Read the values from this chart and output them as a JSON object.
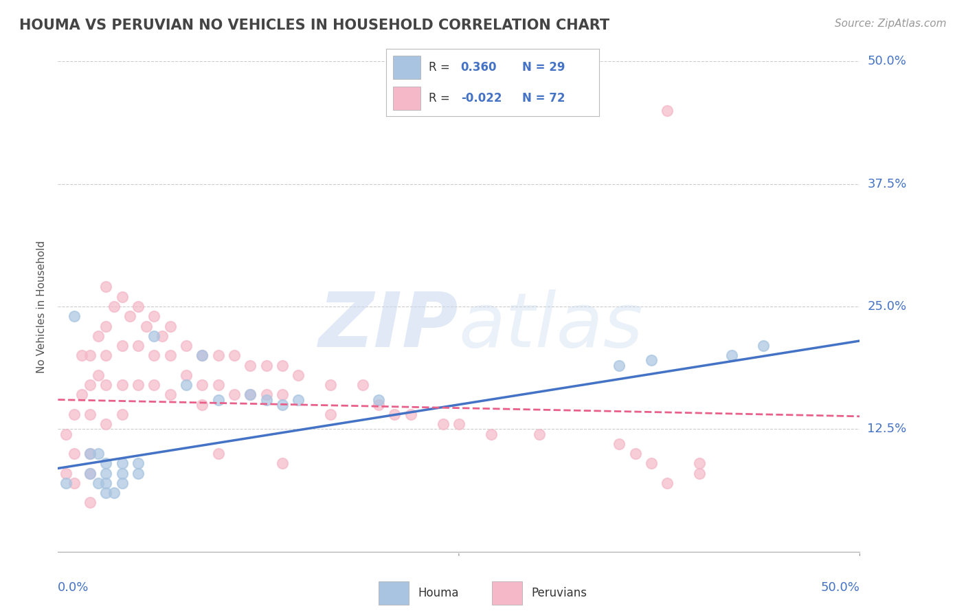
{
  "title": "HOUMA VS PERUVIAN NO VEHICLES IN HOUSEHOLD CORRELATION CHART",
  "source": "Source: ZipAtlas.com",
  "ylabel": "No Vehicles in Household",
  "y_ticks": [
    0.0,
    0.125,
    0.25,
    0.375,
    0.5
  ],
  "y_tick_labels": [
    "",
    "12.5%",
    "25.0%",
    "37.5%",
    "50.0%"
  ],
  "xlim": [
    0.0,
    0.5
  ],
  "ylim": [
    0.0,
    0.5
  ],
  "houma_color": "#a8c4e0",
  "peruvian_color": "#f4b8c8",
  "houma_line_color": "#4472c4",
  "peruvian_line_color": "#e8608a",
  "houma_scatter_x": [
    0.005,
    0.01,
    0.02,
    0.02,
    0.025,
    0.025,
    0.03,
    0.03,
    0.03,
    0.03,
    0.035,
    0.04,
    0.04,
    0.04,
    0.05,
    0.05,
    0.06,
    0.08,
    0.09,
    0.1,
    0.12,
    0.13,
    0.14,
    0.15,
    0.2,
    0.35,
    0.37,
    0.42,
    0.44
  ],
  "houma_scatter_y": [
    0.07,
    0.24,
    0.1,
    0.08,
    0.1,
    0.07,
    0.09,
    0.08,
    0.07,
    0.06,
    0.06,
    0.09,
    0.08,
    0.07,
    0.09,
    0.08,
    0.22,
    0.17,
    0.2,
    0.155,
    0.16,
    0.155,
    0.15,
    0.155,
    0.155,
    0.19,
    0.195,
    0.2,
    0.21
  ],
  "peruvian_scatter_x": [
    0.005,
    0.005,
    0.01,
    0.01,
    0.01,
    0.015,
    0.015,
    0.02,
    0.02,
    0.02,
    0.02,
    0.025,
    0.025,
    0.03,
    0.03,
    0.03,
    0.03,
    0.03,
    0.035,
    0.04,
    0.04,
    0.04,
    0.04,
    0.045,
    0.05,
    0.05,
    0.05,
    0.055,
    0.06,
    0.06,
    0.06,
    0.065,
    0.07,
    0.07,
    0.07,
    0.08,
    0.08,
    0.09,
    0.09,
    0.09,
    0.1,
    0.1,
    0.11,
    0.11,
    0.12,
    0.12,
    0.13,
    0.13,
    0.14,
    0.14,
    0.15,
    0.17,
    0.17,
    0.19,
    0.2,
    0.21,
    0.22,
    0.24,
    0.25,
    0.27,
    0.3,
    0.35,
    0.36,
    0.37,
    0.38,
    0.4,
    0.38,
    0.4,
    0.02,
    0.02,
    0.1,
    0.14
  ],
  "peruvian_scatter_y": [
    0.12,
    0.08,
    0.14,
    0.1,
    0.07,
    0.2,
    0.16,
    0.2,
    0.17,
    0.14,
    0.1,
    0.22,
    0.18,
    0.27,
    0.23,
    0.2,
    0.17,
    0.13,
    0.25,
    0.26,
    0.21,
    0.17,
    0.14,
    0.24,
    0.25,
    0.21,
    0.17,
    0.23,
    0.24,
    0.2,
    0.17,
    0.22,
    0.23,
    0.2,
    0.16,
    0.21,
    0.18,
    0.2,
    0.17,
    0.15,
    0.2,
    0.17,
    0.2,
    0.16,
    0.19,
    0.16,
    0.19,
    0.16,
    0.19,
    0.16,
    0.18,
    0.17,
    0.14,
    0.17,
    0.15,
    0.14,
    0.14,
    0.13,
    0.13,
    0.12,
    0.12,
    0.11,
    0.1,
    0.09,
    0.07,
    0.08,
    0.45,
    0.09,
    0.08,
    0.05,
    0.1,
    0.09
  ],
  "houma_line_x0": 0.0,
  "houma_line_x1": 0.5,
  "houma_line_y0": 0.085,
  "houma_line_y1": 0.215,
  "peruvian_line_x0": 0.0,
  "peruvian_line_x1": 0.5,
  "peruvian_line_y0": 0.155,
  "peruvian_line_y1": 0.138,
  "background_color": "#ffffff",
  "grid_color": "#cccccc",
  "title_color": "#444444",
  "tick_label_color": "#4472c4"
}
